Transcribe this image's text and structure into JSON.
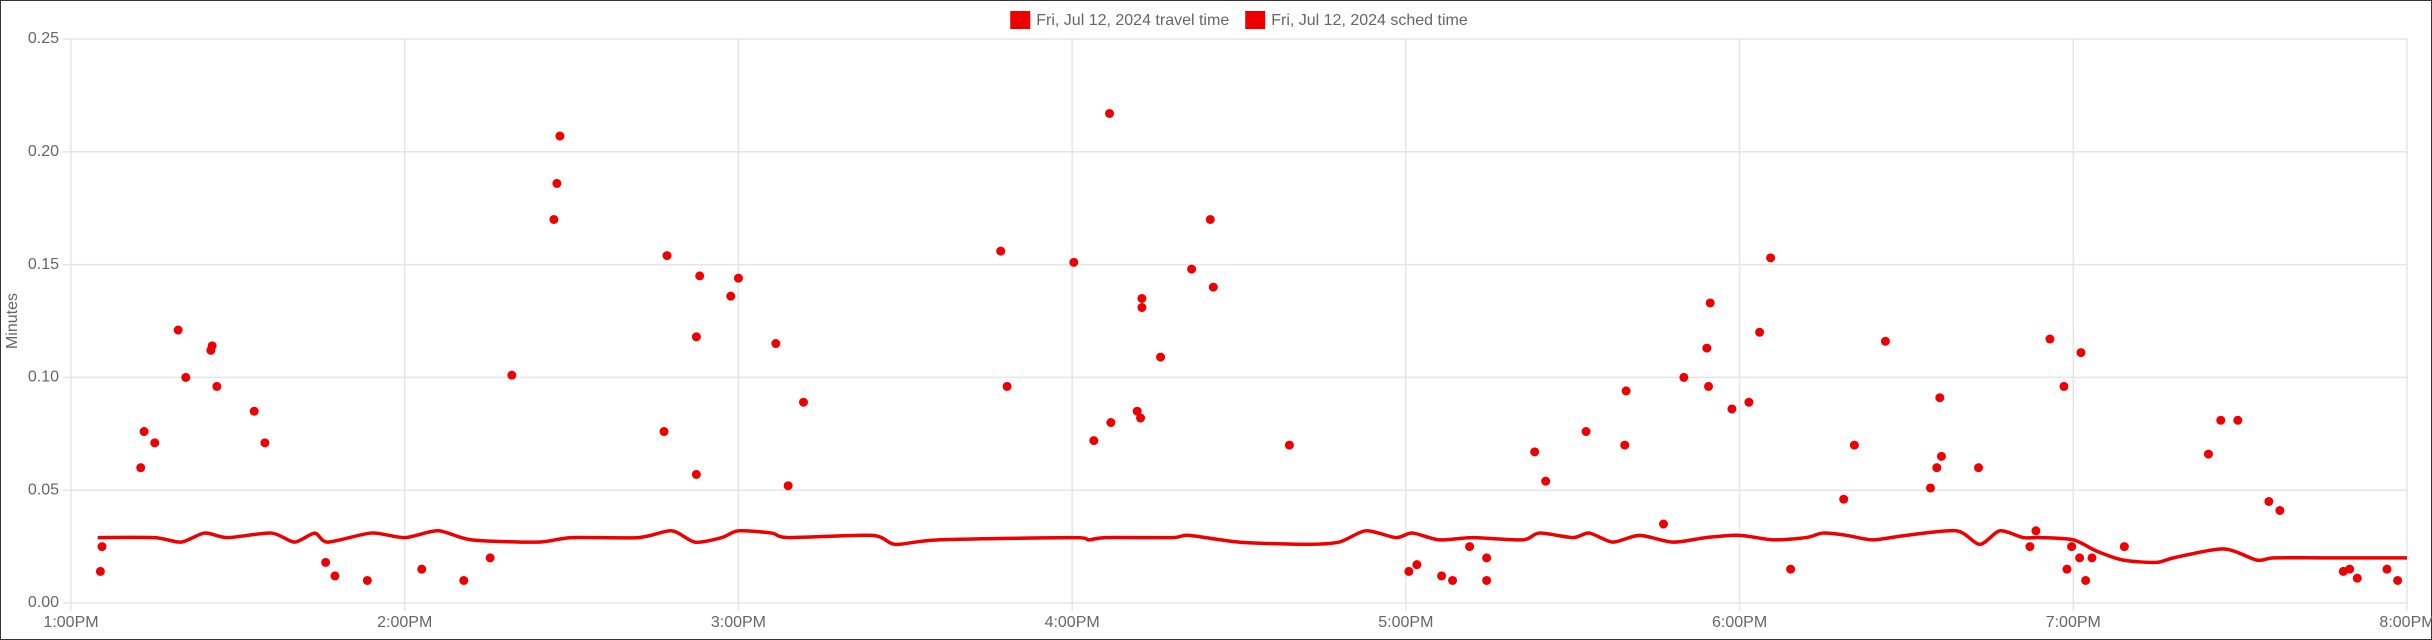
{
  "chart_data": {
    "type": "scatter",
    "y_label": "Minutes",
    "xlim": [
      13,
      20
    ],
    "ylim": [
      0,
      0.25
    ],
    "xticks": [
      {
        "value": 13,
        "label": "1:00PM"
      },
      {
        "value": 14,
        "label": "2:00PM"
      },
      {
        "value": 15,
        "label": "3:00PM"
      },
      {
        "value": 16,
        "label": "4:00PM"
      },
      {
        "value": 17,
        "label": "5:00PM"
      },
      {
        "value": 18,
        "label": "6:00PM"
      },
      {
        "value": 19,
        "label": "7:00PM"
      },
      {
        "value": 20,
        "label": "8:00PM"
      }
    ],
    "yticks": [
      {
        "value": 0,
        "label": "0.00"
      },
      0.05,
      {
        "value": 0.1,
        "label": "0.10"
      },
      0.15,
      {
        "value": 0.2,
        "label": "0.20"
      },
      0.25
    ],
    "grid": true,
    "legend": "top",
    "series": [
      {
        "name": "Fri, Jul 12, 2024 travel time",
        "type": "scatter",
        "color": "#ee0000",
        "x": [
          13.088,
          13.093,
          13.209,
          13.219,
          13.251,
          13.321,
          13.344,
          13.419,
          13.423,
          13.437,
          13.549,
          13.581,
          13.763,
          13.791,
          13.888,
          14.051,
          14.177,
          14.256,
          14.321,
          14.447,
          14.456,
          14.465,
          14.777,
          14.786,
          14.874,
          14.874,
          14.884,
          14.977,
          15.0,
          15.112,
          15.149,
          15.195,
          15.786,
          15.805,
          16.005,
          16.065,
          16.112,
          16.116,
          16.195,
          16.205,
          16.209,
          16.209,
          16.265,
          16.358,
          16.414,
          16.423,
          16.651,
          17.009,
          17.033,
          17.107,
          17.14,
          17.191,
          17.242,
          17.242,
          17.386,
          17.419,
          17.54,
          17.656,
          17.66,
          17.772,
          17.833,
          17.902,
          17.907,
          17.912,
          17.977,
          18.028,
          18.06,
          18.093,
          18.153,
          18.312,
          18.344,
          18.437,
          18.572,
          18.591,
          18.6,
          18.605,
          18.716,
          18.87,
          18.888,
          18.93,
          18.972,
          18.981,
          18.995,
          19.019,
          19.023,
          19.037,
          19.056,
          19.153,
          19.405,
          19.442,
          19.493,
          19.586,
          19.619,
          19.809,
          19.828,
          19.851,
          19.94,
          19.972
        ],
        "values": [
          0.014,
          0.025,
          0.06,
          0.076,
          0.071,
          0.121,
          0.1,
          0.112,
          0.114,
          0.096,
          0.085,
          0.071,
          0.018,
          0.012,
          0.01,
          0.015,
          0.01,
          0.02,
          0.101,
          0.17,
          0.186,
          0.207,
          0.076,
          0.154,
          0.057,
          0.118,
          0.145,
          0.136,
          0.144,
          0.115,
          0.052,
          0.089,
          0.156,
          0.096,
          0.151,
          0.072,
          0.217,
          0.08,
          0.085,
          0.082,
          0.135,
          0.131,
          0.109,
          0.148,
          0.17,
          0.14,
          0.07,
          0.014,
          0.017,
          0.012,
          0.01,
          0.025,
          0.02,
          0.01,
          0.067,
          0.054,
          0.076,
          0.07,
          0.094,
          0.035,
          0.1,
          0.113,
          0.096,
          0.133,
          0.086,
          0.089,
          0.12,
          0.153,
          0.015,
          0.046,
          0.07,
          0.116,
          0.051,
          0.06,
          0.091,
          0.065,
          0.06,
          0.025,
          0.032,
          0.117,
          0.096,
          0.015,
          0.025,
          0.02,
          0.111,
          0.01,
          0.02,
          0.025,
          0.066,
          0.081,
          0.081,
          0.045,
          0.041,
          0.014,
          0.015,
          0.011,
          0.015,
          0.01
        ]
      },
      {
        "name": "Fri, Jul 12, 2024 sched time",
        "type": "line",
        "color": "#ee0000",
        "x": [
          13.08,
          13.25,
          13.33,
          13.4,
          13.47,
          13.6,
          13.67,
          13.73,
          13.77,
          13.9,
          14.0,
          14.1,
          14.2,
          14.4,
          14.5,
          14.7,
          14.8,
          14.87,
          14.95,
          15.0,
          15.1,
          15.15,
          15.4,
          15.47,
          15.6,
          16.0,
          16.05,
          16.1,
          16.3,
          16.35,
          16.5,
          16.7,
          16.8,
          16.88,
          16.97,
          17.02,
          17.1,
          17.2,
          17.35,
          17.4,
          17.5,
          17.55,
          17.62,
          17.7,
          17.8,
          17.9,
          18.0,
          18.1,
          18.2,
          18.25,
          18.32,
          18.4,
          18.5,
          18.65,
          18.72,
          18.78,
          18.85,
          18.9,
          19.0,
          19.07,
          19.15,
          19.25,
          19.3,
          19.45,
          19.55,
          19.6,
          19.75,
          20.0
        ],
        "values": [
          0.029,
          0.029,
          0.027,
          0.031,
          0.029,
          0.031,
          0.027,
          0.031,
          0.027,
          0.031,
          0.029,
          0.032,
          0.028,
          0.027,
          0.029,
          0.029,
          0.032,
          0.027,
          0.029,
          0.032,
          0.031,
          0.029,
          0.03,
          0.026,
          0.028,
          0.029,
          0.028,
          0.029,
          0.029,
          0.03,
          0.027,
          0.026,
          0.027,
          0.032,
          0.029,
          0.031,
          0.028,
          0.029,
          0.028,
          0.031,
          0.029,
          0.031,
          0.027,
          0.03,
          0.027,
          0.029,
          0.03,
          0.028,
          0.029,
          0.031,
          0.03,
          0.028,
          0.03,
          0.032,
          0.026,
          0.032,
          0.029,
          0.029,
          0.028,
          0.023,
          0.019,
          0.018,
          0.02,
          0.024,
          0.019,
          0.02,
          0.02,
          0.02
        ]
      }
    ]
  }
}
